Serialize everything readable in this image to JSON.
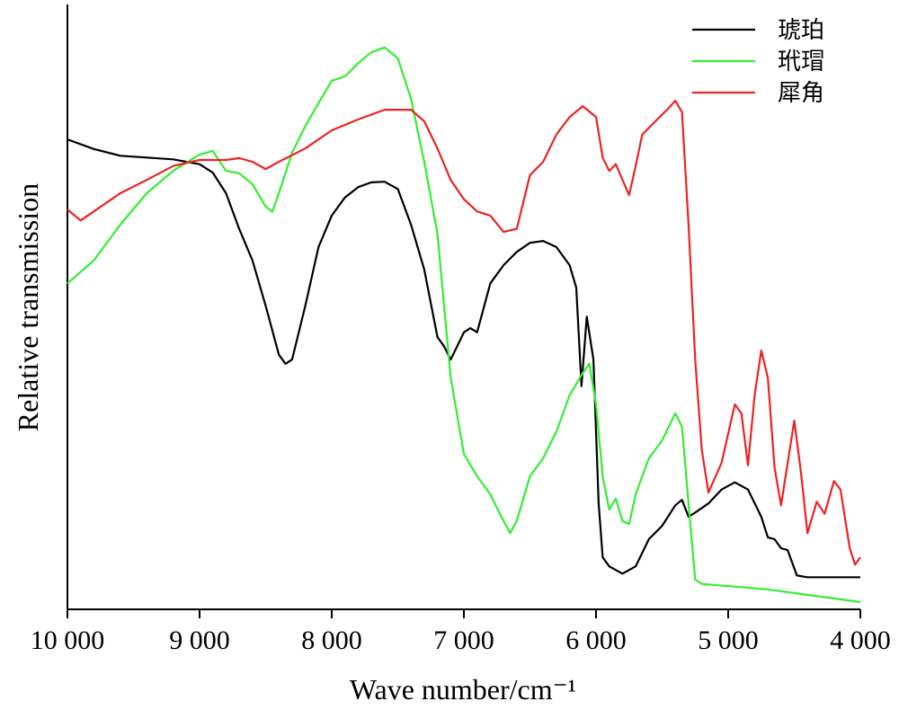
{
  "chart_data": {
    "type": "line",
    "xlabel": "Wave number/cm⁻¹",
    "ylabel": "Relative transmission",
    "xlim": [
      10000,
      4000
    ],
    "ylim": [
      0,
      100
    ],
    "xticks": [
      {
        "value": 10000,
        "label": "10 000"
      },
      {
        "value": 9000,
        "label": "9 000"
      },
      {
        "value": 8000,
        "label": "8 000"
      },
      {
        "value": 7000,
        "label": "7 000"
      },
      {
        "value": 6000,
        "label": "6 000"
      },
      {
        "value": 5000,
        "label": "5 000"
      },
      {
        "value": 4000,
        "label": "4 000"
      }
    ],
    "legend": "upper right",
    "series": [
      {
        "name": "琥珀",
        "color": "#000000",
        "x": [
          10000,
          9800,
          9600,
          9400,
          9200,
          9000,
          8900,
          8800,
          8700,
          8600,
          8500,
          8400,
          8350,
          8300,
          8200,
          8100,
          8000,
          7900,
          7800,
          7700,
          7600,
          7500,
          7400,
          7300,
          7200,
          7150,
          7100,
          7050,
          7000,
          6950,
          6900,
          6800,
          6700,
          6600,
          6500,
          6400,
          6300,
          6200,
          6150,
          6110,
          6070,
          6020,
          5980,
          5950,
          5900,
          5800,
          5700,
          5600,
          5500,
          5400,
          5350,
          5300,
          5250,
          5150,
          5050,
          4950,
          4850,
          4750,
          4700,
          4650,
          4600,
          4550,
          4480,
          4400,
          4000
        ],
        "values": [
          77.7,
          76.1,
          75.0,
          74.7,
          74.4,
          73.6,
          72.2,
          68.8,
          62.9,
          57.7,
          50.2,
          42.1,
          40.6,
          41.3,
          50.2,
          59.9,
          65.1,
          68.1,
          69.8,
          70.6,
          70.7,
          69.5,
          63.6,
          56.2,
          45.0,
          43.5,
          41.3,
          43.5,
          45.8,
          46.5,
          45.8,
          53.9,
          56.9,
          59.1,
          60.6,
          60.9,
          59.9,
          56.9,
          53.2,
          36.9,
          48.4,
          41.3,
          17.5,
          8.6,
          7.1,
          5.9,
          7.1,
          11.6,
          13.8,
          17.2,
          18.1,
          15.3,
          16.0,
          17.5,
          19.8,
          21.0,
          19.8,
          15.3,
          11.9,
          11.6,
          10.1,
          9.8,
          5.6,
          5.3,
          5.3
        ]
      },
      {
        "name": "玳瑁",
        "color": "#33ee33",
        "x": [
          10000,
          9800,
          9600,
          9400,
          9200,
          9000,
          8900,
          8800,
          8700,
          8600,
          8500,
          8450,
          8400,
          8300,
          8200,
          8100,
          8000,
          7900,
          7800,
          7700,
          7600,
          7500,
          7400,
          7300,
          7200,
          7100,
          7000,
          6900,
          6800,
          6700,
          6650,
          6600,
          6500,
          6400,
          6300,
          6200,
          6100,
          6050,
          6000,
          5950,
          5900,
          5850,
          5800,
          5750,
          5700,
          5600,
          5500,
          5400,
          5350,
          5300,
          5250,
          5200,
          4700,
          4000
        ],
        "values": [
          53.9,
          57.7,
          63.6,
          68.8,
          72.5,
          75.2,
          75.8,
          72.5,
          72.1,
          70.3,
          66.6,
          65.7,
          68.8,
          75.5,
          79.9,
          83.7,
          87.4,
          88.1,
          90.3,
          92.1,
          92.9,
          91.1,
          84.4,
          74.0,
          62.1,
          38.3,
          25.7,
          22.0,
          19.0,
          14.6,
          12.6,
          14.6,
          22.0,
          25.0,
          29.4,
          35.4,
          39.1,
          40.6,
          33.9,
          22.0,
          16.5,
          18.3,
          14.6,
          14.1,
          19.0,
          25.0,
          27.9,
          32.4,
          30.2,
          17.5,
          4.9,
          4.2,
          3.3,
          1.2
        ]
      },
      {
        "name": "犀角",
        "color": "#ee2222",
        "x": [
          10000,
          9900,
          9800,
          9600,
          9400,
          9200,
          9000,
          8800,
          8700,
          8600,
          8500,
          8400,
          8200,
          8000,
          7800,
          7600,
          7400,
          7300,
          7200,
          7100,
          7000,
          6900,
          6800,
          6700,
          6600,
          6500,
          6400,
          6300,
          6200,
          6100,
          6000,
          5950,
          5900,
          5850,
          5800,
          5750,
          5700,
          5650,
          5550,
          5450,
          5400,
          5350,
          5300,
          5250,
          5200,
          5150,
          5050,
          4950,
          4900,
          4850,
          4800,
          4750,
          4700,
          4650,
          4600,
          4500,
          4450,
          4400,
          4330,
          4270,
          4200,
          4150,
          4080,
          4040,
          4000
        ],
        "values": [
          66.1,
          64.3,
          65.8,
          68.8,
          71.0,
          73.3,
          74.3,
          74.3,
          74.6,
          74.0,
          72.8,
          74.0,
          76.2,
          79.2,
          81.0,
          82.6,
          82.6,
          80.7,
          76.2,
          71.0,
          67.8,
          65.8,
          65.1,
          62.4,
          62.9,
          71.8,
          74.0,
          78.5,
          81.4,
          83.2,
          81.4,
          74.7,
          72.5,
          73.6,
          71.0,
          68.5,
          73.3,
          78.5,
          80.7,
          82.9,
          84.1,
          82.2,
          63.6,
          41.3,
          26.4,
          19.3,
          24.2,
          33.9,
          32.4,
          23.8,
          35.4,
          42.8,
          38.3,
          23.5,
          17.2,
          31.2,
          22.7,
          12.6,
          17.8,
          15.8,
          21.2,
          19.8,
          10.1,
          7.4,
          8.6
        ]
      }
    ]
  }
}
